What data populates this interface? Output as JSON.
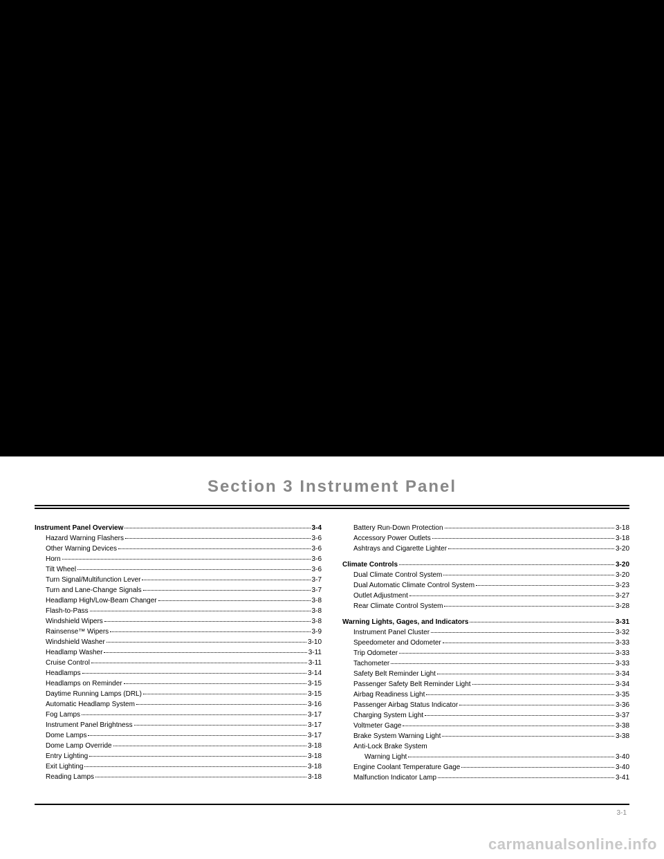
{
  "section_title": "Section 3    Instrument Panel",
  "page_number": "3-1",
  "watermark": "carmanualsonline.info",
  "left_column": [
    {
      "type": "heading",
      "label": "Instrument Panel Overview",
      "page": "3-4"
    },
    {
      "type": "sub",
      "label": "Hazard Warning Flashers",
      "page": "3-6"
    },
    {
      "type": "sub",
      "label": "Other Warning Devices",
      "page": "3-6"
    },
    {
      "type": "sub",
      "label": "Horn",
      "page": "3-6"
    },
    {
      "type": "sub",
      "label": "Tilt Wheel",
      "page": "3-6"
    },
    {
      "type": "sub",
      "label": "Turn Signal/Multifunction Lever",
      "page": "3-7"
    },
    {
      "type": "sub",
      "label": "Turn and Lane-Change Signals",
      "page": "3-7"
    },
    {
      "type": "sub",
      "label": "Headlamp High/Low-Beam Changer",
      "page": "3-8"
    },
    {
      "type": "sub",
      "label": "Flash-to-Pass",
      "page": "3-8"
    },
    {
      "type": "sub",
      "label": "Windshield Wipers",
      "page": "3-8"
    },
    {
      "type": "sub",
      "label": "Rainsense™ Wipers",
      "page": "3-9"
    },
    {
      "type": "sub",
      "label": "Windshield Washer",
      "page": "3-10"
    },
    {
      "type": "sub",
      "label": "Headlamp Washer",
      "page": "3-11"
    },
    {
      "type": "sub",
      "label": "Cruise Control",
      "page": "3-11"
    },
    {
      "type": "sub",
      "label": "Headlamps",
      "page": "3-14"
    },
    {
      "type": "sub",
      "label": "Headlamps on Reminder",
      "page": "3-15"
    },
    {
      "type": "sub",
      "label": "Daytime Running Lamps (DRL)",
      "page": "3-15"
    },
    {
      "type": "sub",
      "label": "Automatic Headlamp System",
      "page": "3-16"
    },
    {
      "type": "sub",
      "label": "Fog Lamps",
      "page": "3-17"
    },
    {
      "type": "sub",
      "label": "Instrument Panel Brightness",
      "page": "3-17"
    },
    {
      "type": "sub",
      "label": "Dome Lamps",
      "page": "3-17"
    },
    {
      "type": "sub",
      "label": "Dome Lamp Override",
      "page": "3-18"
    },
    {
      "type": "sub",
      "label": "Entry Lighting",
      "page": "3-18"
    },
    {
      "type": "sub",
      "label": "Exit Lighting",
      "page": "3-18"
    },
    {
      "type": "sub",
      "label": "Reading Lamps",
      "page": "3-18"
    }
  ],
  "right_column": [
    {
      "type": "sub",
      "label": "Battery Run-Down Protection",
      "page": "3-18"
    },
    {
      "type": "sub",
      "label": "Accessory Power Outlets",
      "page": "3-18"
    },
    {
      "type": "sub",
      "label": "Ashtrays and Cigarette Lighter",
      "page": "3-20"
    },
    {
      "type": "spacer"
    },
    {
      "type": "heading",
      "label": "Climate Controls",
      "page": "3-20"
    },
    {
      "type": "sub",
      "label": "Dual Climate Control System",
      "page": "3-20"
    },
    {
      "type": "sub",
      "label": "Dual Automatic Climate Control System",
      "page": "3-23"
    },
    {
      "type": "sub",
      "label": "Outlet Adjustment",
      "page": "3-27"
    },
    {
      "type": "sub",
      "label": "Rear Climate Control System",
      "page": "3-28"
    },
    {
      "type": "spacer"
    },
    {
      "type": "heading",
      "label": "Warning Lights, Gages, and Indicators",
      "page": "3-31"
    },
    {
      "type": "sub",
      "label": "Instrument Panel Cluster",
      "page": "3-32"
    },
    {
      "type": "sub",
      "label": "Speedometer and Odometer",
      "page": "3-33"
    },
    {
      "type": "sub",
      "label": "Trip Odometer",
      "page": "3-33"
    },
    {
      "type": "sub",
      "label": "Tachometer",
      "page": "3-33"
    },
    {
      "type": "sub",
      "label": "Safety Belt Reminder Light",
      "page": "3-34"
    },
    {
      "type": "sub",
      "label": "Passenger Safety Belt Reminder Light",
      "page": "3-34"
    },
    {
      "type": "sub",
      "label": "Airbag Readiness Light",
      "page": "3-35"
    },
    {
      "type": "sub",
      "label": "Passenger Airbag Status Indicator",
      "page": "3-36"
    },
    {
      "type": "sub",
      "label": "Charging System Light",
      "page": "3-37"
    },
    {
      "type": "sub",
      "label": "Voltmeter Gage",
      "page": "3-38"
    },
    {
      "type": "sub",
      "label": "Brake System Warning Light",
      "page": "3-38"
    },
    {
      "type": "sub-noline",
      "label": "Anti-Lock Brake System"
    },
    {
      "type": "subsub",
      "label": "Warning Light",
      "page": "3-40"
    },
    {
      "type": "sub",
      "label": "Engine Coolant Temperature Gage",
      "page": "3-40"
    },
    {
      "type": "sub",
      "label": "Malfunction Indicator Lamp",
      "page": "3-41"
    }
  ]
}
